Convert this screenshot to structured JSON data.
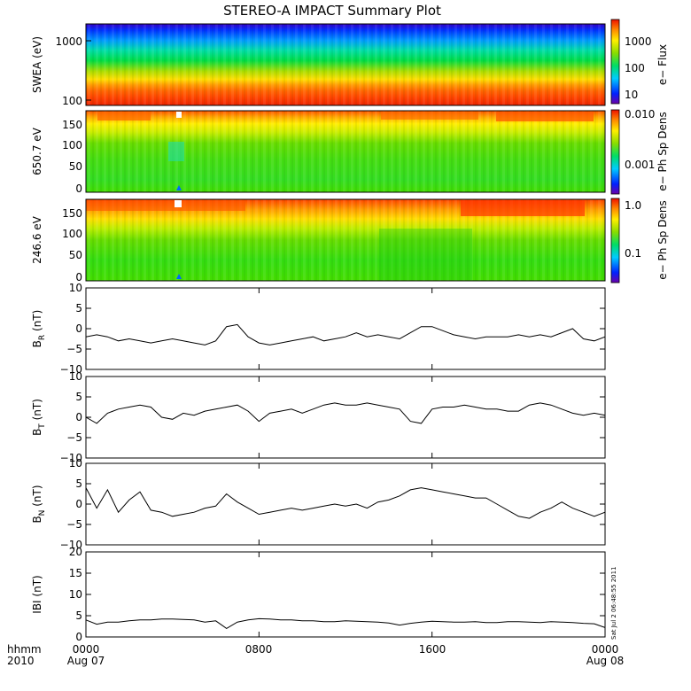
{
  "title": "STEREO-A IMPACT Summary Plot",
  "x_axis": {
    "tick_labels": [
      "0000",
      "0800",
      "1600",
      "0000"
    ],
    "start_date": "Aug 07",
    "end_date": "Aug 08",
    "format_label": "hhmm",
    "year_label": "2010"
  },
  "timestamp": "Sat Jul  2 06:48:55 2011",
  "chart_data": [
    {
      "type": "heatmap",
      "id": "swea",
      "ylabel": "SWEA (eV)",
      "yscale": "log",
      "ylim": [
        100,
        2000
      ],
      "yticks": [
        "1000",
        "100"
      ],
      "xlim_hours": [
        0,
        24
      ],
      "colorbar": {
        "label": "e− Flux",
        "scale": "log",
        "ticks": [
          "1000",
          "100",
          "10"
        ]
      },
      "description_bands": [
        {
          "energy_ev": 1700,
          "color": "#2200dd"
        },
        {
          "energy_ev": 1000,
          "color": "#0099ff"
        },
        {
          "energy_ev": 600,
          "color": "#00dd66"
        },
        {
          "energy_ev": 300,
          "color": "#ffdd00"
        },
        {
          "energy_ev": 150,
          "color": "#ff6600"
        },
        {
          "energy_ev": 100,
          "color": "#ee2200"
        }
      ]
    },
    {
      "type": "heatmap",
      "id": "pad650",
      "ylabel": "650.7 eV",
      "ylim": [
        0,
        180
      ],
      "yticks": [
        "150",
        "100",
        "50",
        "0"
      ],
      "xlim_hours": [
        0,
        24
      ],
      "colorbar": {
        "label": "e− Ph Sp Dens",
        "scale": "log",
        "ticks": [
          "0.010",
          "0.001"
        ]
      }
    },
    {
      "type": "heatmap",
      "id": "pad246",
      "ylabel": "246.6 eV",
      "ylim": [
        0,
        180
      ],
      "yticks": [
        "150",
        "100",
        "50",
        "0"
      ],
      "xlim_hours": [
        0,
        24
      ],
      "colorbar": {
        "label": "e− Ph Sp Dens",
        "scale": "log",
        "ticks": [
          "1.0",
          "0.1"
        ]
      }
    },
    {
      "type": "line",
      "id": "br",
      "ylabel": "B_R (nT)",
      "ylabel_main": "B",
      "ylabel_sub": "R",
      "ylabel_unit": "(nT)",
      "ylim": [
        -10,
        10
      ],
      "yticks": [
        "10",
        "5",
        "0",
        "−5",
        "−10"
      ],
      "x_hours": [
        0,
        0.5,
        1,
        1.5,
        2,
        2.5,
        3,
        3.5,
        4,
        4.5,
        5,
        5.5,
        6,
        6.5,
        7,
        7.5,
        8,
        8.5,
        9,
        9.5,
        10,
        10.5,
        11,
        11.5,
        12,
        12.5,
        13,
        13.5,
        14,
        14.5,
        15,
        15.5,
        16,
        16.5,
        17,
        17.5,
        18,
        18.5,
        19,
        19.5,
        20,
        20.5,
        21,
        21.5,
        22,
        22.5,
        23,
        23.5,
        24
      ],
      "values": [
        -2,
        -1.5,
        -2,
        -3,
        -2.5,
        -3,
        -3.5,
        -3,
        -2.5,
        -3,
        -3.5,
        -4,
        -3,
        0.5,
        1,
        -2,
        -3.5,
        -4,
        -3.5,
        -3,
        -2.5,
        -2,
        -3,
        -2.5,
        -2,
        -1,
        -2,
        -1.5,
        -2,
        -2.5,
        -1,
        0.5,
        0.5,
        -0.5,
        -1.5,
        -2,
        -2.5,
        -2,
        -2,
        -2,
        -1.5,
        -2,
        -1.5,
        -2,
        -1,
        0,
        -2.5,
        -3,
        -2
      ]
    },
    {
      "type": "line",
      "id": "bt",
      "ylabel": "B_T (nT)",
      "ylabel_main": "B",
      "ylabel_sub": "T",
      "ylabel_unit": "(nT)",
      "ylim": [
        -10,
        10
      ],
      "yticks": [
        "10",
        "5",
        "0",
        "−5",
        "−10"
      ],
      "x_hours": [
        0,
        0.5,
        1,
        1.5,
        2,
        2.5,
        3,
        3.5,
        4,
        4.5,
        5,
        5.5,
        6,
        6.5,
        7,
        7.5,
        8,
        8.5,
        9,
        9.5,
        10,
        10.5,
        11,
        11.5,
        12,
        12.5,
        13,
        13.5,
        14,
        14.5,
        15,
        15.5,
        16,
        16.5,
        17,
        17.5,
        18,
        18.5,
        19,
        19.5,
        20,
        20.5,
        21,
        21.5,
        22,
        22.5,
        23,
        23.5,
        24
      ],
      "values": [
        0,
        -1.5,
        1,
        2,
        2.5,
        3,
        2.5,
        0,
        -0.5,
        1,
        0.5,
        1.5,
        2,
        2.5,
        3,
        1.5,
        -1,
        1,
        1.5,
        2,
        1,
        2,
        3,
        3.5,
        3,
        3,
        3.5,
        3,
        2.5,
        2,
        -1,
        -1.5,
        2,
        2.5,
        2.5,
        3,
        2.5,
        2,
        2,
        1.5,
        1.5,
        3,
        3.5,
        3,
        2,
        1,
        0.5,
        1,
        0.5
      ]
    },
    {
      "type": "line",
      "id": "bn",
      "ylabel": "B_N (nT)",
      "ylabel_main": "B",
      "ylabel_sub": "N",
      "ylabel_unit": "(nT)",
      "ylim": [
        -10,
        10
      ],
      "yticks": [
        "10",
        "5",
        "0",
        "−5",
        "−10"
      ],
      "x_hours": [
        0,
        0.5,
        1,
        1.5,
        2,
        2.5,
        3,
        3.5,
        4,
        4.5,
        5,
        5.5,
        6,
        6.5,
        7,
        7.5,
        8,
        8.5,
        9,
        9.5,
        10,
        10.5,
        11,
        11.5,
        12,
        12.5,
        13,
        13.5,
        14,
        14.5,
        15,
        15.5,
        16,
        16.5,
        17,
        17.5,
        18,
        18.5,
        19,
        19.5,
        20,
        20.5,
        21,
        21.5,
        22,
        22.5,
        23,
        23.5,
        24
      ],
      "values": [
        4,
        -1,
        3.5,
        -2,
        1,
        3,
        -1.5,
        -2,
        -3,
        -2.5,
        -2,
        -1,
        -0.5,
        2.5,
        0.5,
        -1,
        -2.5,
        -2,
        -1.5,
        -1,
        -1.5,
        -1,
        -0.5,
        0,
        -0.5,
        0,
        -1,
        0.5,
        1,
        2,
        3.5,
        4,
        3.5,
        3,
        2.5,
        2,
        1.5,
        1.5,
        0,
        -1.5,
        -3,
        -3.5,
        -2,
        -1,
        0.5,
        -1,
        -2,
        -3,
        -2
      ]
    },
    {
      "type": "line",
      "id": "bmag",
      "ylabel": "|B| (nT)",
      "ylabel_text": "IBI (nT)",
      "ylim": [
        0,
        20
      ],
      "yticks": [
        "20",
        "15",
        "10",
        "5",
        "0"
      ],
      "x_hours": [
        0,
        0.5,
        1,
        1.5,
        2,
        2.5,
        3,
        3.5,
        4,
        4.5,
        5,
        5.5,
        6,
        6.5,
        7,
        7.5,
        8,
        8.5,
        9,
        9.5,
        10,
        10.5,
        11,
        11.5,
        12,
        12.5,
        13,
        13.5,
        14,
        14.5,
        15,
        15.5,
        16,
        16.5,
        17,
        17.5,
        18,
        18.5,
        19,
        19.5,
        20,
        20.5,
        21,
        21.5,
        22,
        22.5,
        23,
        23.5,
        24
      ],
      "values": [
        4,
        3,
        3.5,
        3.5,
        3.8,
        4,
        4,
        4.2,
        4.2,
        4.1,
        4,
        3.5,
        3.8,
        2,
        3.5,
        4,
        4.3,
        4.2,
        4,
        4,
        3.8,
        3.8,
        3.6,
        3.6,
        3.8,
        3.7,
        3.6,
        3.5,
        3.3,
        2.8,
        3.2,
        3.5,
        3.7,
        3.6,
        3.5,
        3.5,
        3.6,
        3.4,
        3.4,
        3.6,
        3.6,
        3.5,
        3.4,
        3.6,
        3.5,
        3.4,
        3.2,
        3.1,
        2.2
      ]
    }
  ]
}
